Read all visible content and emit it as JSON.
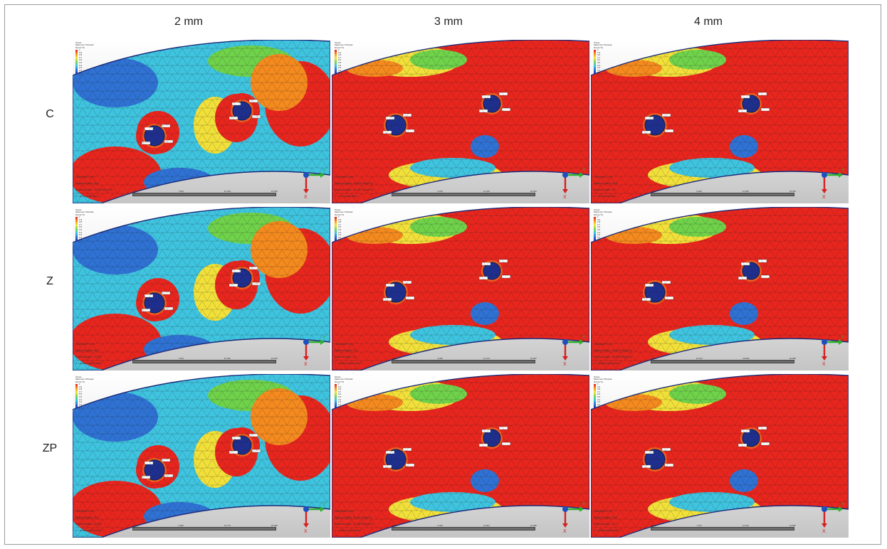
{
  "columns": [
    "2 mm",
    "3 mm",
    "4 mm"
  ],
  "rows": [
    "C",
    "Z",
    "ZP"
  ],
  "legend": {
    "title_lines": [
      "Stress",
      "Maximum Principal",
      "N/(mm^2)"
    ],
    "ticks": [
      "1",
      "0.9",
      "0.8",
      "0.7",
      "0.6",
      "0.5",
      "0.4",
      "0.3",
      "0.2",
      "0.1",
      "0"
    ]
  },
  "panels": [
    {
      "row": "C",
      "col": "2 mm",
      "info": [
        "Load Case: 1 of 1",
        "Maximum Value: 33.4",
        "Minimum Value: -7.2363 N/(mm^2)",
        "X = (circ-pontic-side) ="
      ],
      "scale": [
        "0.000",
        "7.500",
        "15.000",
        "22.500"
      ],
      "holes": 2,
      "mostly_red": false
    },
    {
      "row": "C",
      "col": "3 mm",
      "info": [
        "Load Case: 1 of 1",
        "Maximum Value: 25.6513 N/(mm^2)",
        "Minimum Value: -10.2627 N/(mm^2)",
        "X = (circ-pontic-side) ="
      ],
      "scale": [
        "0.000",
        "6.230",
        "12.460",
        "18.690"
      ],
      "holes": 2,
      "mostly_red": true
    },
    {
      "row": "C",
      "col": "4 mm",
      "info": [
        "Load Case: 1 of 1",
        "Maximum Value: 28.8",
        "Minimum Value: -9.5",
        "X = (circ-pontic-side) ="
      ],
      "scale": [
        "0.000",
        "6.000",
        "12.000",
        "18.000"
      ],
      "holes": 2,
      "mostly_red": true
    },
    {
      "row": "Z",
      "col": "2 mm",
      "info": [
        "Load Case: 1 of 1",
        "Maximum Value: 30.1",
        "Minimum Value: -7.3323",
        "X = (zirkon-pontic-side) ="
      ],
      "scale": [
        "0.000",
        "7.626",
        "15.252",
        "22.878"
      ],
      "holes": 2,
      "mostly_red": false
    },
    {
      "row": "Z",
      "col": "3 mm",
      "info": [
        "Load Case: 1 of 1",
        "Maximum Value: 27.4",
        "Minimum Value: -8.9",
        "X = (zirkon-pontic-side) ="
      ],
      "scale": [
        "0.000",
        "6.096",
        "12.191",
        "18.287"
      ],
      "holes": 2,
      "mostly_red": true
    },
    {
      "row": "Z",
      "col": "4 mm",
      "info": [
        "Load Case: 1 of 1",
        "Maximum Value: 25.5474 N/(mm^2)",
        "Minimum Value: -10.8476 N/(mm^2)",
        "X = (zirkon-pontic-side) ="
      ],
      "scale": [
        "0.000",
        "10.327",
        "20.653",
        "30.980"
      ],
      "holes": 2,
      "mostly_red": true
    },
    {
      "row": "ZP",
      "col": "2 mm",
      "info": [
        "Load Case: 1 of 1",
        "Maximum Value: 31.2",
        "Minimum Value: -6.2043",
        "X = (zirkon-pontic-side) ="
      ],
      "scale": [
        "0.000",
        "6.830",
        "13.770",
        "20.655"
      ],
      "holes": 2,
      "mostly_red": false
    },
    {
      "row": "ZP",
      "col": "3 mm",
      "info": [
        "Load Case: 1 of 1",
        "Maximum Value: 32.291 N/(mm^2)",
        "Minimum Value: -12.2603 N/(mm^2)",
        "X = (zirkon-pontic-side) ="
      ],
      "scale": [
        "0.000",
        "6.493",
        "12.987",
        "19.480"
      ],
      "holes": 2,
      "mostly_red": true
    },
    {
      "row": "ZP",
      "col": "4 mm",
      "info": [
        "Load Case: 1 of 1",
        "Maximum Value: 29.9",
        "Minimum Value: -11.1",
        "X = (zirkon-pontic-side) ="
      ],
      "scale": [
        "0.000",
        "7.267",
        "14.533",
        "21.800"
      ],
      "holes": 2,
      "mostly_red": true
    }
  ],
  "axis_triad": {
    "x_label": "X",
    "y_label": "Y",
    "x_color": "#d62020",
    "y_color": "#2fb02f",
    "z_color": "#1f4fbf"
  },
  "colors": {
    "red": "#e8261e",
    "orange": "#f58a1e",
    "yellow": "#f2e03a",
    "green": "#6fd24a",
    "cyan": "#3fc4e0",
    "blue": "#2f72d4",
    "navy": "#1f2f8f",
    "background": "#d9d9d9"
  }
}
